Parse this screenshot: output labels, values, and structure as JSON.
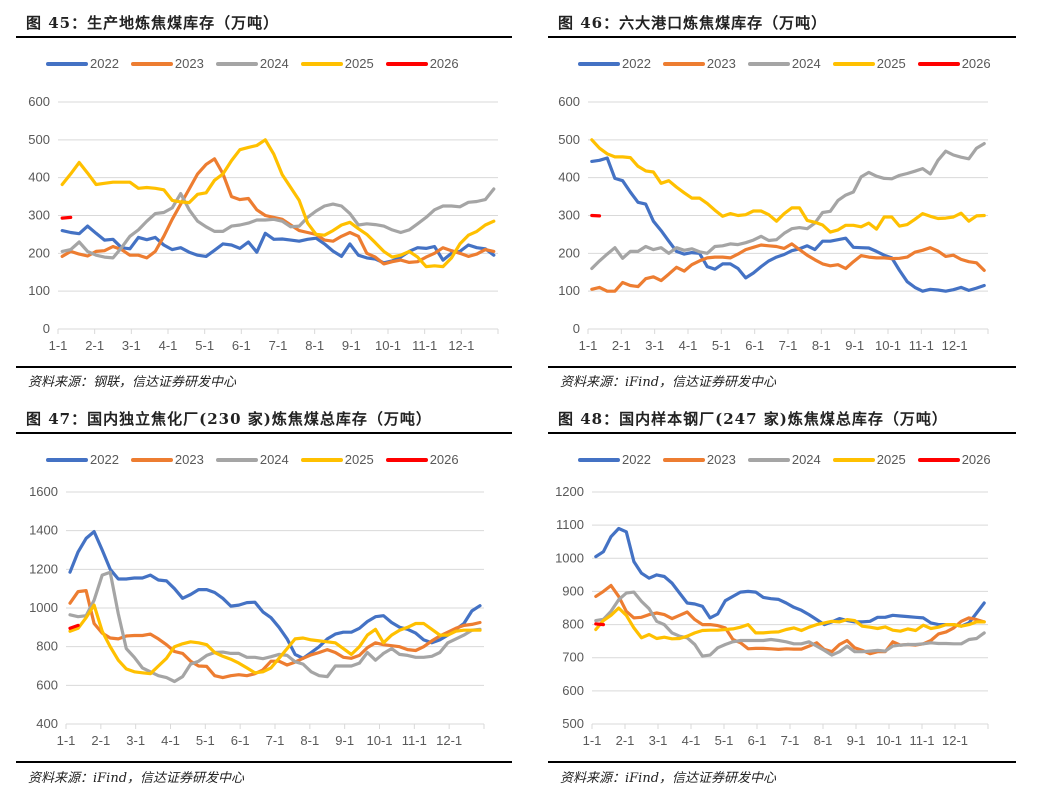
{
  "colors": {
    "2022": "#4472C4",
    "2023": "#ED7D31",
    "2024": "#A5A5A5",
    "2025": "#FFC000",
    "2026": "#FF0000"
  },
  "chart_data": [
    {
      "type": "line",
      "title": "图 45：生产地炼焦煤库存（万吨）",
      "source": "资料来源：钢联，信达证券研发中心",
      "categories": [
        "1-1",
        "2-1",
        "3-1",
        "4-1",
        "5-1",
        "6-1",
        "7-1",
        "8-1",
        "9-1",
        "10-1",
        "11-1",
        "12-1"
      ],
      "ylim": [
        0,
        600
      ],
      "yticks": [
        0,
        100,
        200,
        300,
        400,
        500,
        600
      ],
      "legend": "top",
      "series": [
        {
          "name": "2022",
          "values": [
            260,
            255,
            252,
            272,
            253,
            235,
            237,
            215,
            212,
            242,
            236,
            242,
            222,
            210,
            215,
            203,
            195,
            192,
            208,
            225,
            222,
            213,
            230,
            203,
            253,
            237,
            238,
            235,
            232,
            237,
            240,
            225,
            206,
            192,
            225,
            195,
            188,
            185,
            175,
            180,
            190,
            205,
            215,
            213,
            218,
            182,
            200,
            205,
            222,
            215,
            212,
            195
          ]
        },
        {
          "name": "2023",
          "values": [
            192,
            205,
            198,
            193,
            205,
            207,
            218,
            210,
            195,
            195,
            188,
            205,
            245,
            290,
            330,
            370,
            410,
            435,
            450,
            410,
            350,
            342,
            345,
            315,
            300,
            295,
            290,
            275,
            260,
            255,
            250,
            235,
            232,
            245,
            255,
            245,
            200,
            190,
            172,
            178,
            182,
            176,
            178,
            190,
            200,
            215,
            207,
            200,
            192,
            198,
            210,
            205
          ]
        },
        {
          "name": "2024",
          "values": [
            205,
            210,
            230,
            205,
            195,
            190,
            188,
            215,
            245,
            262,
            285,
            305,
            308,
            320,
            358,
            315,
            285,
            270,
            258,
            258,
            272,
            275,
            280,
            288,
            288,
            290,
            285,
            270,
            272,
            295,
            312,
            325,
            330,
            325,
            305,
            275,
            278,
            276,
            272,
            262,
            255,
            262,
            278,
            295,
            315,
            325,
            325,
            323,
            335,
            337,
            342,
            370
          ]
        },
        {
          "name": "2025",
          "values": [
            382,
            410,
            440,
            412,
            382,
            385,
            388,
            388,
            388,
            372,
            374,
            372,
            368,
            340,
            336,
            334,
            356,
            360,
            393,
            410,
            445,
            474,
            480,
            485,
            500,
            462,
            408,
            374,
            340,
            280,
            250,
            248,
            260,
            275,
            282,
            265,
            250,
            228,
            205,
            190,
            195,
            205,
            190,
            165,
            167,
            165,
            188,
            225,
            248,
            258,
            275,
            285
          ]
        },
        {
          "name": "2026",
          "values": [
            293,
            295
          ]
        }
      ]
    },
    {
      "type": "line",
      "title": "图 46：六大港口炼焦煤库存（万吨）",
      "source": "资料来源：iFind，信达证券研发中心",
      "categories": [
        "1-1",
        "2-1",
        "3-1",
        "4-1",
        "5-1",
        "6-1",
        "7-1",
        "8-1",
        "9-1",
        "10-1",
        "11-1",
        "12-1"
      ],
      "ylim": [
        0,
        600
      ],
      "yticks": [
        0,
        100,
        200,
        300,
        400,
        500,
        600
      ],
      "legend": "top",
      "series": [
        {
          "name": "2022",
          "values": [
            443,
            446,
            452,
            398,
            392,
            362,
            335,
            330,
            285,
            260,
            232,
            205,
            198,
            202,
            200,
            165,
            158,
            172,
            172,
            160,
            135,
            148,
            165,
            180,
            190,
            197,
            207,
            212,
            220,
            210,
            232,
            232,
            236,
            240,
            216,
            215,
            214,
            205,
            195,
            188,
            155,
            125,
            110,
            100,
            105,
            103,
            100,
            104,
            110,
            102,
            108,
            115
          ]
        },
        {
          "name": "2023",
          "values": [
            105,
            110,
            100,
            100,
            123,
            115,
            112,
            133,
            138,
            128,
            145,
            163,
            153,
            170,
            180,
            188,
            190,
            190,
            188,
            198,
            210,
            216,
            222,
            220,
            218,
            213,
            225,
            210,
            195,
            183,
            172,
            167,
            170,
            160,
            178,
            194,
            190,
            188,
            188,
            186,
            187,
            190,
            203,
            208,
            215,
            206,
            192,
            195,
            184,
            178,
            175,
            155
          ]
        },
        {
          "name": "2024",
          "values": [
            160,
            180,
            198,
            215,
            187,
            205,
            205,
            218,
            210,
            215,
            200,
            215,
            208,
            212,
            204,
            200,
            218,
            220,
            225,
            223,
            228,
            235,
            245,
            234,
            236,
            253,
            265,
            268,
            265,
            280,
            308,
            311,
            340,
            354,
            362,
            402,
            414,
            404,
            398,
            397,
            406,
            411,
            417,
            424,
            410,
            446,
            470,
            460,
            454,
            450,
            478,
            490
          ]
        },
        {
          "name": "2025",
          "values": [
            500,
            478,
            463,
            455,
            455,
            453,
            430,
            418,
            415,
            385,
            392,
            375,
            360,
            346,
            346,
            332,
            314,
            298,
            305,
            300,
            302,
            312,
            312,
            302,
            285,
            305,
            320,
            320,
            287,
            282,
            275,
            256,
            262,
            274,
            274,
            270,
            280,
            264,
            296,
            296,
            272,
            276,
            290,
            305,
            298,
            292,
            293,
            296,
            306,
            285,
            299,
            300
          ]
        },
        {
          "name": "2026",
          "values": [
            300,
            299
          ]
        }
      ]
    },
    {
      "type": "line",
      "title": "图 47：国内独立焦化厂(230 家)炼焦煤总库存（万吨）",
      "source": "资料来源：iFind，信达证券研发中心",
      "categories": [
        "1-1",
        "2-1",
        "3-1",
        "4-1",
        "5-1",
        "6-1",
        "7-1",
        "8-1",
        "9-1",
        "10-1",
        "11-1",
        "12-1"
      ],
      "ylim": [
        400,
        1600
      ],
      "yticks": [
        400,
        600,
        800,
        1000,
        1200,
        1400,
        1600
      ],
      "legend": "top",
      "series": [
        {
          "name": "2022",
          "values": [
            1185,
            1290,
            1360,
            1395,
            1300,
            1200,
            1150,
            1150,
            1155,
            1155,
            1170,
            1145,
            1140,
            1100,
            1050,
            1070,
            1095,
            1095,
            1080,
            1050,
            1010,
            1015,
            1028,
            1030,
            980,
            950,
            900,
            840,
            760,
            740,
            770,
            800,
            840,
            865,
            875,
            875,
            895,
            930,
            955,
            960,
            925,
            900,
            890,
            870,
            835,
            820,
            835,
            860,
            890,
            920,
            985,
            1012
          ]
        },
        {
          "name": "2023",
          "values": [
            1025,
            1085,
            1090,
            920,
            870,
            845,
            840,
            855,
            858,
            858,
            865,
            840,
            810,
            775,
            765,
            725,
            700,
            698,
            650,
            640,
            650,
            655,
            650,
            660,
            680,
            725,
            725,
            705,
            720,
            740,
            758,
            770,
            785,
            770,
            745,
            740,
            755,
            795,
            820,
            810,
            805,
            800,
            785,
            780,
            800,
            830,
            855,
            875,
            895,
            910,
            915,
            925
          ]
        },
        {
          "name": "2024",
          "values": [
            965,
            955,
            960,
            1040,
            1170,
            1185,
            970,
            790,
            745,
            690,
            670,
            650,
            640,
            620,
            645,
            710,
            725,
            755,
            770,
            772,
            765,
            765,
            745,
            745,
            738,
            748,
            760,
            755,
            722,
            710,
            670,
            650,
            645,
            700,
            700,
            700,
            715,
            770,
            730,
            765,
            790,
            760,
            755,
            745,
            745,
            750,
            770,
            820,
            840,
            860,
            885,
            890
          ]
        },
        {
          "name": "2025",
          "values": [
            880,
            895,
            950,
            1015,
            880,
            800,
            730,
            685,
            670,
            665,
            660,
            700,
            740,
            800,
            815,
            825,
            820,
            810,
            770,
            750,
            735,
            715,
            690,
            665,
            670,
            690,
            740,
            790,
            840,
            845,
            835,
            830,
            825,
            820,
            790,
            760,
            800,
            860,
            890,
            820,
            860,
            885,
            900,
            920,
            920,
            890,
            860,
            860,
            880,
            885,
            885,
            885
          ]
        },
        {
          "name": "2026",
          "values": [
            895,
            910
          ]
        }
      ]
    },
    {
      "type": "line",
      "title": "图 48：国内样本钢厂(247 家)炼焦煤总库存（万吨）",
      "source": "资料来源：iFind，信达证券研发中心",
      "categories": [
        "1-1",
        "2-1",
        "3-1",
        "4-1",
        "5-1",
        "6-1",
        "7-1",
        "8-1",
        "9-1",
        "10-1",
        "11-1",
        "12-1"
      ],
      "ylim": [
        500,
        1200
      ],
      "yticks": [
        500,
        600,
        700,
        800,
        900,
        1000,
        1100,
        1200
      ],
      "legend": "top",
      "series": [
        {
          "name": "2022",
          "values": [
            1005,
            1020,
            1065,
            1090,
            1080,
            990,
            955,
            940,
            950,
            945,
            925,
            895,
            865,
            862,
            855,
            820,
            832,
            872,
            885,
            898,
            900,
            898,
            882,
            878,
            876,
            865,
            852,
            843,
            830,
            815,
            800,
            808,
            818,
            812,
            808,
            808,
            810,
            822,
            822,
            828,
            826,
            824,
            822,
            820,
            805,
            800,
            800,
            800,
            795,
            805,
            835,
            865
          ]
        },
        {
          "name": "2023",
          "values": [
            885,
            900,
            918,
            885,
            840,
            820,
            822,
            830,
            835,
            830,
            818,
            828,
            838,
            815,
            800,
            800,
            797,
            790,
            755,
            745,
            727,
            728,
            728,
            727,
            725,
            727,
            726,
            726,
            735,
            745,
            725,
            718,
            740,
            752,
            730,
            722,
            712,
            718,
            718,
            748,
            738,
            740,
            738,
            742,
            752,
            772,
            778,
            790,
            810,
            820,
            815,
            808
          ]
        },
        {
          "name": "2024",
          "values": [
            812,
            816,
            840,
            875,
            895,
            898,
            870,
            848,
            810,
            800,
            775,
            765,
            760,
            740,
            705,
            708,
            730,
            740,
            748,
            752,
            752,
            752,
            752,
            755,
            752,
            748,
            742,
            742,
            748,
            735,
            722,
            708,
            718,
            735,
            718,
            718,
            720,
            722,
            720,
            735,
            738,
            740,
            740,
            742,
            745,
            743,
            743,
            742,
            742,
            755,
            758,
            775
          ]
        },
        {
          "name": "2025",
          "values": [
            785,
            812,
            828,
            850,
            828,
            790,
            760,
            770,
            758,
            762,
            757,
            758,
            765,
            775,
            782,
            783,
            783,
            785,
            787,
            792,
            800,
            775,
            775,
            777,
            778,
            785,
            790,
            782,
            792,
            800,
            805,
            810,
            808,
            815,
            812,
            795,
            792,
            788,
            793,
            783,
            780,
            787,
            782,
            798,
            788,
            792,
            800,
            800,
            795,
            800,
            808,
            808
          ]
        },
        {
          "name": "2026",
          "values": [
            802,
            800
          ]
        }
      ]
    }
  ]
}
